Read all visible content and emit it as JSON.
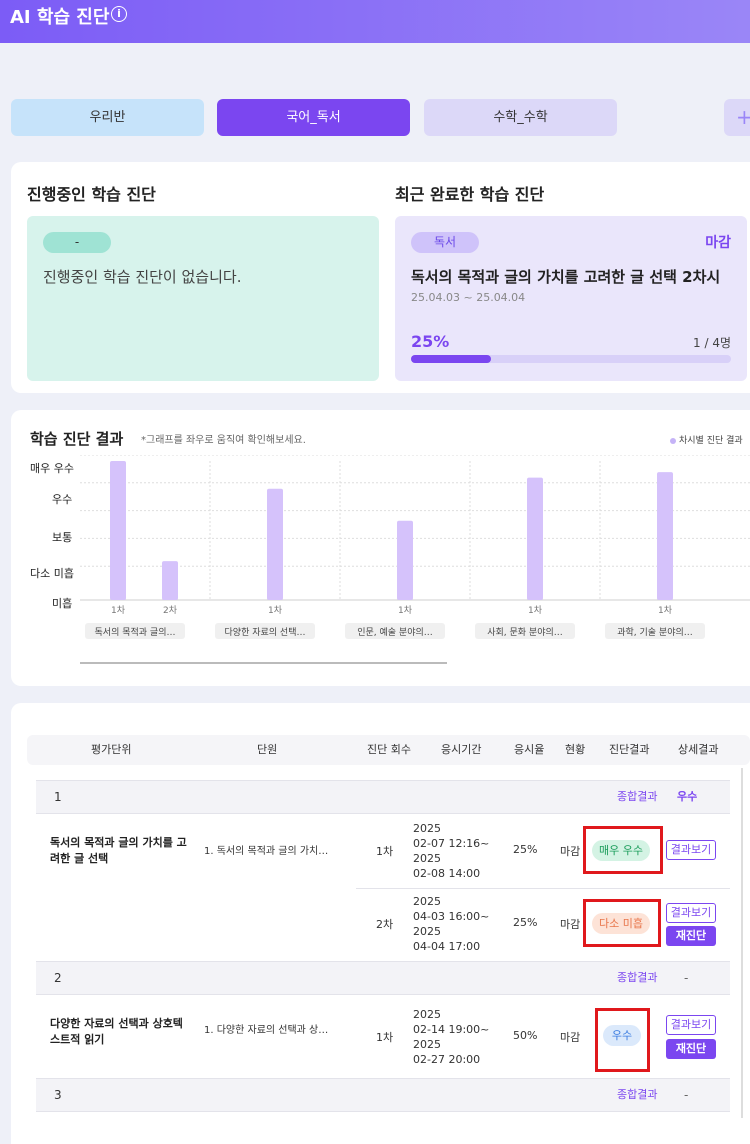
{
  "app": {
    "title": "AI 학습 진단"
  },
  "tabs": [
    {
      "label": "우리반"
    },
    {
      "label": "국어_독서"
    },
    {
      "label": "수학_수학"
    }
  ],
  "ongoing": {
    "title": "진행중인 학습 진단",
    "badge": "-",
    "empty_text": "진행중인 학습 진단이 없습니다."
  },
  "recent": {
    "title": "최근 완료한 학습 진단",
    "badge": "독서",
    "status": "마감",
    "name": "독서의 목적과 글의 가치를 고려한 글 선택 2차시",
    "date": "25.04.03 ~ 25.04.04",
    "percent_text": "25%",
    "progress": 0.25,
    "count": "1 / 4명"
  },
  "chart_section": {
    "title": "학습 진단 결과",
    "note": "*그래프를 좌우로 움직여 확인해보세요.",
    "legend": "차시별 진단 결과"
  },
  "chart_data": {
    "type": "bar",
    "y_levels": [
      "미흡",
      "다소 미흡",
      "보통",
      "우수",
      "매우 우수"
    ],
    "ylim": [
      0,
      5
    ],
    "legend": "차시별 진단 결과",
    "groups": [
      {
        "label": "독서의 목적과 글의…",
        "bars": [
          {
            "label": "1차",
            "value": 5.0
          },
          {
            "label": "2차",
            "value": 1.4
          }
        ]
      },
      {
        "label": "다양한 자료의 선택…",
        "bars": [
          {
            "label": "1차",
            "value": 4.0
          }
        ]
      },
      {
        "label": "인문, 예술 분야의…",
        "bars": [
          {
            "label": "1차",
            "value": 2.85
          }
        ]
      },
      {
        "label": "사회, 문화 분야의…",
        "bars": [
          {
            "label": "1차",
            "value": 4.4
          }
        ]
      },
      {
        "label": "과학, 기술 분야의…",
        "bars": [
          {
            "label": "1차",
            "value": 4.6
          }
        ]
      }
    ]
  },
  "table": {
    "headers": [
      "평가단위",
      "단원",
      "진단 회수",
      "응시기간",
      "응시율",
      "현황",
      "진단결과",
      "상세결과"
    ],
    "summary_link": "종합결과",
    "groups": [
      {
        "num": "1",
        "overall": "우수"
      },
      {
        "num": "2",
        "overall": "-"
      },
      {
        "num": "3",
        "overall": "-"
      }
    ],
    "rows": [
      {
        "unit": "독서의 목적과 글의 가치를 고려한 글 선택",
        "chapter": "1. 독서의 목적과 글의 가치…",
        "attempts": [
          {
            "round": "1차",
            "period": [
              "2025",
              "02-07 12:16~",
              "2025",
              "02-08 14:00"
            ],
            "rate": "25%",
            "status": "마감",
            "result": "매우 우수",
            "view": "결과보기"
          },
          {
            "round": "2차",
            "period": [
              "2025",
              "04-03 16:00~",
              "2025",
              "04-04 17:00"
            ],
            "rate": "25%",
            "status": "마감",
            "result": "다소 미흡",
            "view": "결과보기",
            "retest": "재진단"
          }
        ]
      },
      {
        "unit": "다양한 자료의 선택과 상호텍스트적 읽기",
        "chapter": "1. 다양한 자료의 선택과 상…",
        "attempts": [
          {
            "round": "1차",
            "period": [
              "2025",
              "02-14 19:00~",
              "2025",
              "02-27 20:00"
            ],
            "rate": "50%",
            "status": "마감",
            "result": "우수",
            "view": "결과보기",
            "retest": "재진단"
          }
        ]
      }
    ]
  },
  "colors": {
    "accent": "#7b46f0",
    "bar": "#d5c2fb",
    "highlight": "#e0181c"
  }
}
